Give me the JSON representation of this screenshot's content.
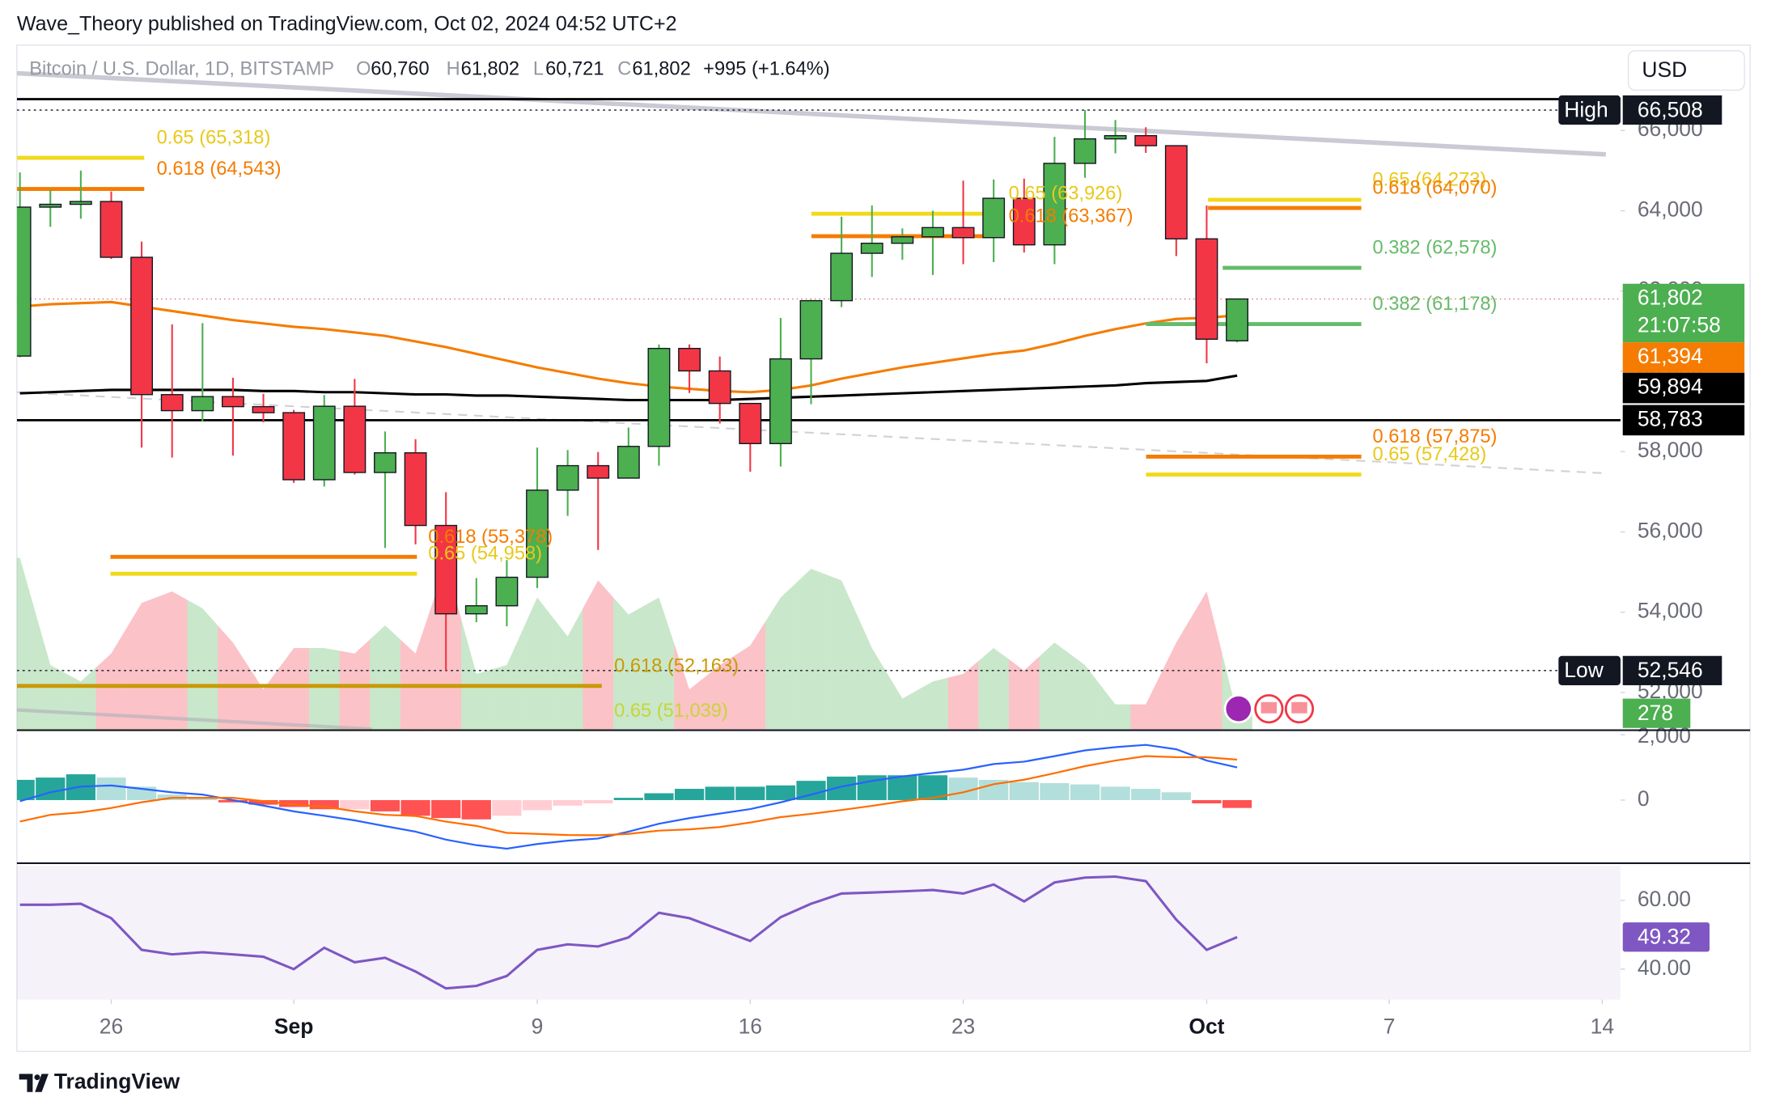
{
  "header": "Wave_Theory published on TradingView.com, Oct 02, 2024 04:52 UTC+2",
  "brand": "TradingView",
  "currency": "USD",
  "legend": {
    "symbol": "Bitcoin / U.S. Dollar, 1D, BITSTAMP",
    "items": [
      [
        "O",
        "60,760"
      ],
      [
        "H",
        "61,802"
      ],
      [
        "L",
        "60,721"
      ],
      [
        "C",
        "61,802"
      ]
    ],
    "change": "+995 (+1.64%)"
  },
  "chart_data": [
    {
      "type": "candlestick",
      "open": [
        60380,
        64090,
        64160,
        64230,
        62840,
        59420,
        59020,
        59370,
        59120,
        58970,
        57300,
        59130,
        57480,
        57970,
        56160,
        53960,
        54160,
        54870,
        57040,
        57650,
        57340,
        58130,
        60570,
        60010,
        59200,
        58200,
        60310,
        61760,
        62940,
        63190,
        63350,
        63580,
        63330,
        64310,
        63150,
        65180,
        65790,
        65870,
        65620,
        63300,
        60760
      ],
      "high": [
        64955,
        64520,
        65000,
        64480,
        63230,
        61170,
        61200,
        59840,
        59440,
        59040,
        59410,
        59810,
        58500,
        58310,
        56990,
        54850,
        55300,
        58100,
        58040,
        57990,
        58600,
        60670,
        60670,
        60370,
        59200,
        61330,
        61780,
        63850,
        64130,
        63560,
        64000,
        64750,
        64780,
        64800,
        65840,
        66508,
        66260,
        66080,
        65620,
        64130,
        61802
      ],
      "low": [
        60350,
        63600,
        63800,
        62800,
        58100,
        57850,
        58750,
        57900,
        58730,
        57220,
        57130,
        57430,
        55600,
        55690,
        52546,
        53750,
        53650,
        54600,
        56400,
        55550,
        57330,
        57650,
        59460,
        58700,
        57500,
        57630,
        59180,
        61600,
        62350,
        62780,
        62400,
        62670,
        62720,
        62960,
        62670,
        64820,
        65430,
        65440,
        62870,
        60200,
        60721
      ],
      "close": [
        64090,
        64160,
        64230,
        62840,
        59420,
        59020,
        59370,
        59120,
        58970,
        57300,
        59130,
        57480,
        57970,
        56160,
        53960,
        54160,
        54870,
        57040,
        57650,
        57340,
        58130,
        60570,
        60010,
        59200,
        58200,
        60310,
        61760,
        62940,
        63190,
        63350,
        63580,
        63330,
        64310,
        63150,
        65180,
        65790,
        65870,
        65620,
        63300,
        60800,
        61802
      ],
      "colors": {
        "up": "#4caf50",
        "down": "#f23645"
      },
      "volume": [
        2830,
        1070,
        800,
        1260,
        2090,
        2280,
        2000,
        1440,
        670,
        1350,
        1350,
        1260,
        1720,
        1260,
        2740,
        925,
        1070,
        2180,
        1540,
        2460,
        1900,
        2180,
        670,
        1070,
        1390,
        2180,
        2650,
        2460,
        1350,
        520,
        800,
        925,
        1350,
        980,
        1440,
        1070,
        425,
        425,
        1440,
        2280,
        278
      ],
      "volume_ylim": [
        0,
        11250
      ],
      "volume_colors": {
        "up": "rgba(76,175,80,0.3)",
        "down": "rgba(242,54,69,0.3)"
      },
      "moving_averages": [
        {
          "color": "#f57c00",
          "values": [
            61614,
            61670,
            61698,
            61726,
            61614,
            61502,
            61390,
            61277,
            61193,
            61109,
            61053,
            60968,
            60884,
            60744,
            60604,
            60435,
            60267,
            60098,
            59958,
            59818,
            59705,
            59621,
            59565,
            59509,
            59481,
            59537,
            59649,
            59818,
            59958,
            60098,
            60211,
            60323,
            60435,
            60519,
            60688,
            60884,
            61053,
            61193,
            61305,
            61333,
            61394
          ]
        },
        {
          "color": "#000000",
          "values": [
            59453,
            59481,
            59509,
            59537,
            59537,
            59537,
            59537,
            59537,
            59509,
            59509,
            59481,
            59481,
            59453,
            59425,
            59425,
            59397,
            59397,
            59368,
            59340,
            59312,
            59284,
            59284,
            59284,
            59284,
            59312,
            59340,
            59368,
            59397,
            59425,
            59453,
            59481,
            59509,
            59537,
            59565,
            59593,
            59621,
            59649,
            59705,
            59733,
            59761,
            59894
          ]
        }
      ],
      "levels": [
        {
          "value": 66779,
          "color": "#000000"
        },
        {
          "value": 58783,
          "color": "#000000"
        }
      ],
      "extremes": [
        {
          "label": "High",
          "value": 66508,
          "value_label": "66,508"
        },
        {
          "label": "Low",
          "value": 52546,
          "value_label": "52,546"
        }
      ],
      "price_labels": [
        {
          "value": 61802,
          "label": "61,802",
          "sub": "21:07:58",
          "color": "#4caf50"
        },
        {
          "value": 61394,
          "label": "61,394",
          "color": "#f57c00"
        },
        {
          "value": 59894,
          "label": "59,894",
          "color": "#000000"
        },
        {
          "value": 58783,
          "label": "58,783",
          "color": "#000000"
        }
      ],
      "fibs": [
        {
          "label": "0.65 (65,318)",
          "value": 65318,
          "color": "#f2d91c"
        },
        {
          "label": "0.618 (64,543)",
          "value": 64543,
          "color": "#f57c00"
        },
        {
          "label": "0.65 (63,926)",
          "value": 63926,
          "color": "#f2d91c"
        },
        {
          "label": "0.618 (63,367)",
          "value": 63367,
          "color": "#f57c00"
        },
        {
          "label": "0.65 (64,273)",
          "value": 64273,
          "color": "#f2d91c"
        },
        {
          "label": "0.618 (64,070)",
          "value": 64070,
          "color": "#f57c00"
        },
        {
          "label": "0.382 (62,578)",
          "value": 62578,
          "color": "#66bb6a"
        },
        {
          "label": "0.382 (61,178)",
          "value": 61178,
          "color": "#66bb6a"
        },
        {
          "label": "0.618 (57,875)",
          "value": 57875,
          "color": "#f57c00"
        },
        {
          "label": "0.65 (57,428)",
          "value": 57428,
          "color": "#f2d91c"
        },
        {
          "label": "0.618 (55,378)",
          "value": 55378,
          "color": "#f57c00"
        },
        {
          "label": "0.65 (54,958)",
          "value": 54958,
          "color": "#f2d91c"
        },
        {
          "label": "0.618 (52,163)",
          "value": 52163,
          "color": "#c99a06"
        },
        {
          "label": "0.65 (51,039)",
          "value": 51039,
          "color": "#c8d43a"
        }
      ],
      "xlim": [
        -0.1,
        52.6
      ],
      "xticks": [
        {
          "value": 3,
          "label": "26"
        },
        {
          "value": 9,
          "label": "Sep"
        },
        {
          "value": 17,
          "label": "9"
        },
        {
          "value": 24,
          "label": "16"
        },
        {
          "value": 31,
          "label": "23"
        },
        {
          "value": 39,
          "label": "Oct"
        },
        {
          "value": 45,
          "label": "7"
        },
        {
          "value": 52,
          "label": "14"
        }
      ],
      "ylim": [
        51060,
        68126
      ],
      "yticks": [
        {
          "value": 52000,
          "label": "52,000"
        },
        {
          "value": 54000,
          "label": "54,000"
        },
        {
          "value": 56000,
          "label": "56,000"
        },
        {
          "value": 58000,
          "label": "58,000"
        },
        {
          "value": 60000,
          "label": "60,000"
        },
        {
          "value": 62000,
          "label": "62,000"
        },
        {
          "value": 64000,
          "label": "64,000"
        },
        {
          "value": 66000,
          "label": "66,000"
        }
      ],
      "grid": false
    },
    {
      "type": "bar",
      "values": [
        620,
        690,
        790,
        690,
        410,
        170,
        100,
        -70,
        -140,
        -210,
        -280,
        -280,
        -345,
        -480,
        -550,
        -590,
        -480,
        -310,
        -170,
        -100,
        70,
        210,
        345,
        410,
        410,
        450,
        590,
        720,
        760,
        760,
        760,
        690,
        620,
        550,
        520,
        480,
        410,
        345,
        240,
        -100,
        -240
      ],
      "bar_colors": {
        "up_grow": "#26a69a",
        "up_fall": "#b2dfdb",
        "down_grow": "#ff5252",
        "down_fall": "#ffcdd2"
      },
      "series": [
        {
          "color": "#2962ff",
          "values": [
            -35,
            240,
            415,
            450,
            345,
            240,
            170,
            0,
            -170,
            -345,
            -480,
            -620,
            -795,
            -965,
            -1210,
            -1380,
            -1485,
            -1345,
            -1240,
            -1175,
            -965,
            -725,
            -550,
            -415,
            -275,
            -70,
            170,
            415,
            585,
            725,
            830,
            930,
            1105,
            1175,
            1345,
            1520,
            1620,
            1690,
            1555,
            1210,
            1000
          ]
        },
        {
          "color": "#ff6d00",
          "values": [
            -655,
            -450,
            -375,
            -240,
            -65,
            70,
            70,
            70,
            -30,
            -135,
            -200,
            -340,
            -450,
            -485,
            -660,
            -790,
            -1005,
            -1035,
            -1070,
            -1075,
            -1035,
            -935,
            -895,
            -825,
            -685,
            -520,
            -420,
            -305,
            -175,
            -35,
            70,
            240,
            485,
            625,
            825,
            1040,
            1210,
            1345,
            1315,
            1310,
            1240
          ]
        }
      ],
      "ylim": [
        -1897,
        2070
      ],
      "yticks": [
        0,
        {
          "value": 2000,
          "label": "2,000"
        }
      ]
    },
    {
      "type": "line",
      "values": [
        58.7,
        58.7,
        59.0,
        54.8,
        45.6,
        44.3,
        44.9,
        44.3,
        43.6,
        40.0,
        46.2,
        42.0,
        43.3,
        39.3,
        34.4,
        35.1,
        38.0,
        45.6,
        47.2,
        46.6,
        49.2,
        56.4,
        54.8,
        51.5,
        48.2,
        55.1,
        59.0,
        62.0,
        62.3,
        62.6,
        63.0,
        62.0,
        64.6,
        59.7,
        65.2,
        66.6,
        66.9,
        65.6,
        54.4,
        45.6,
        49.32
      ],
      "color": "#7e57c2",
      "band": [
        30,
        70
      ],
      "band_color": "rgba(126,87,194,0.08)",
      "ylim": [
        31.15,
        70.15
      ],
      "yticks": [
        {
          "value": 40,
          "label": "40.00"
        },
        {
          "value": 60,
          "label": "60.00"
        }
      ]
    }
  ]
}
